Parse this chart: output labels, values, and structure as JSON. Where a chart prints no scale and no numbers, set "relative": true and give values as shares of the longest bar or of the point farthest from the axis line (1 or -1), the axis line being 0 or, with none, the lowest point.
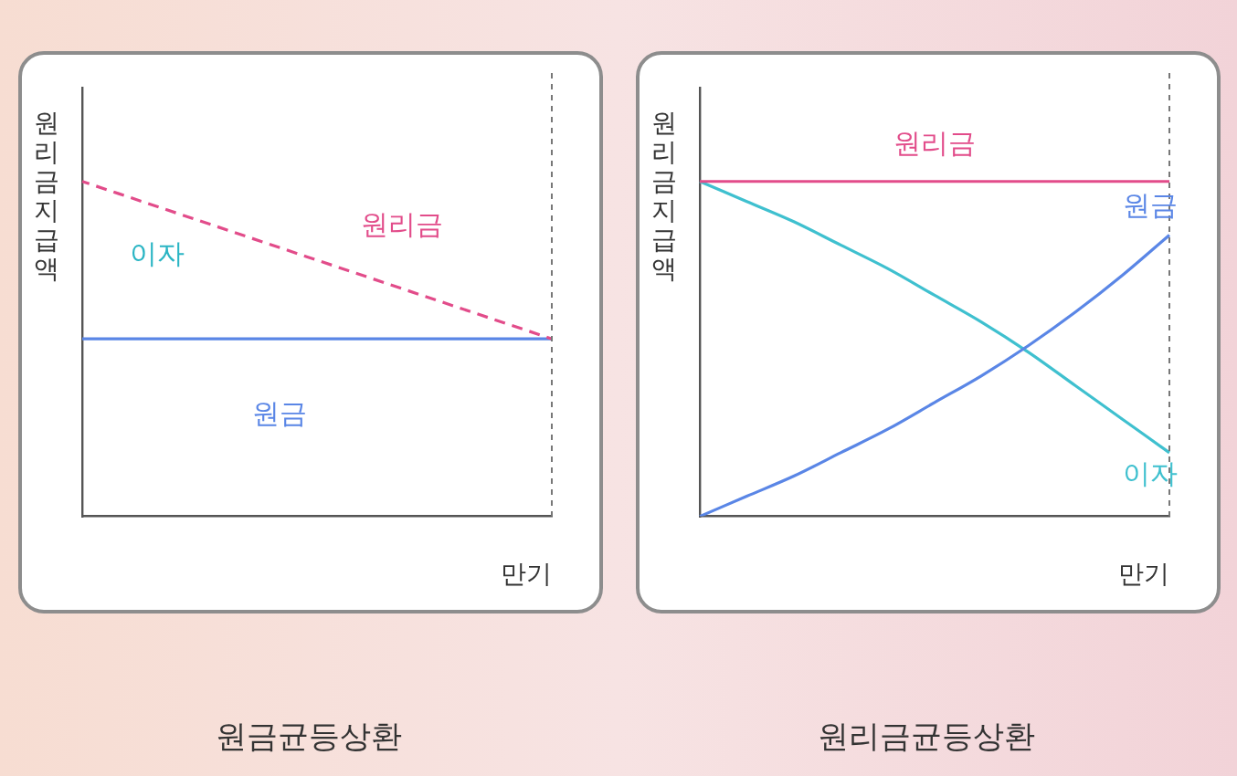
{
  "chart_data": [
    {
      "type": "line",
      "title": "원금균등상환",
      "xlabel": "만기",
      "ylabel": "원리금지급액",
      "categories": [
        null,
        null
      ],
      "relative": true,
      "legend": false,
      "grid": false,
      "marker": "none",
      "annotations": [
        "이자"
      ],
      "series": [
        {
          "name": "원리금",
          "color": "#e24c8a",
          "line_style": "dashed",
          "values": [
            1,
            0.53
          ]
        },
        {
          "name": "원금",
          "color": "#5a86e6",
          "values": [
            0.53,
            0.53
          ]
        }
      ]
    },
    {
      "type": "line",
      "title": "원리금균등상환",
      "xlabel": "만기",
      "ylabel": "원리금지급액",
      "categories": [
        null,
        null,
        null,
        null,
        null,
        null,
        null,
        null,
        null,
        null,
        null
      ],
      "relative": true,
      "legend": false,
      "grid": false,
      "marker": "none",
      "series": [
        {
          "name": "원리금",
          "color": "#e24c8a",
          "values": [
            1,
            1,
            1,
            1,
            1,
            1,
            1,
            1,
            1,
            1,
            1
          ]
        },
        {
          "name": "원금",
          "color": "#5a86e6",
          "values": [
            0,
            0.06,
            0.12,
            0.19,
            0.26,
            0.34,
            0.42,
            0.51,
            0.61,
            0.72,
            0.84
          ]
        },
        {
          "name": "이자",
          "color": "#3fc0cf",
          "values": [
            1,
            0.94,
            0.88,
            0.81,
            0.74,
            0.66,
            0.58,
            0.49,
            0.39,
            0.29,
            0.19
          ]
        }
      ]
    }
  ]
}
